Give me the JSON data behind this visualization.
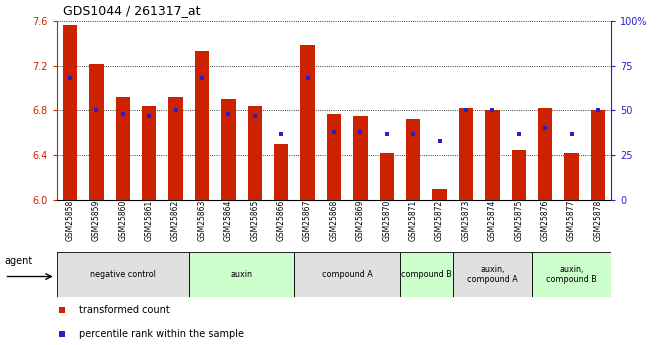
{
  "title": "GDS1044 / 261317_at",
  "samples": [
    "GSM25858",
    "GSM25859",
    "GSM25860",
    "GSM25861",
    "GSM25862",
    "GSM25863",
    "GSM25864",
    "GSM25865",
    "GSM25866",
    "GSM25867",
    "GSM25868",
    "GSM25869",
    "GSM25870",
    "GSM25871",
    "GSM25872",
    "GSM25873",
    "GSM25874",
    "GSM25875",
    "GSM25876",
    "GSM25877",
    "GSM25878"
  ],
  "bar_heights": [
    7.56,
    7.21,
    6.92,
    6.84,
    6.92,
    7.33,
    6.9,
    6.84,
    6.5,
    7.38,
    6.77,
    6.75,
    6.42,
    6.72,
    6.1,
    6.82,
    6.8,
    6.45,
    6.82,
    6.42,
    6.8
  ],
  "percentile_ranks": [
    68,
    50,
    48,
    47,
    50,
    68,
    48,
    47,
    37,
    68,
    38,
    38,
    37,
    37,
    33,
    50,
    50,
    37,
    40,
    37,
    50
  ],
  "ylim_left": [
    6.0,
    7.6
  ],
  "ylim_right": [
    0,
    100
  ],
  "yticks_left": [
    6.0,
    6.4,
    6.8,
    7.2,
    7.6
  ],
  "yticks_right": [
    0,
    25,
    50,
    75,
    100
  ],
  "bar_color": "#CC2200",
  "dot_color": "#2222CC",
  "groups": [
    {
      "label": "negative control",
      "start": 0,
      "end": 5,
      "color": "#E0E0E0"
    },
    {
      "label": "auxin",
      "start": 5,
      "end": 9,
      "color": "#CCFFCC"
    },
    {
      "label": "compound A",
      "start": 9,
      "end": 13,
      "color": "#E0E0E0"
    },
    {
      "label": "compound B",
      "start": 13,
      "end": 15,
      "color": "#CCFFCC"
    },
    {
      "label": "auxin,\ncompound A",
      "start": 15,
      "end": 18,
      "color": "#E0E0E0"
    },
    {
      "label": "auxin,\ncompound B",
      "start": 18,
      "end": 21,
      "color": "#CCFFCC"
    }
  ],
  "left_tick_color": "#CC2200",
  "right_tick_color": "#2222CC"
}
